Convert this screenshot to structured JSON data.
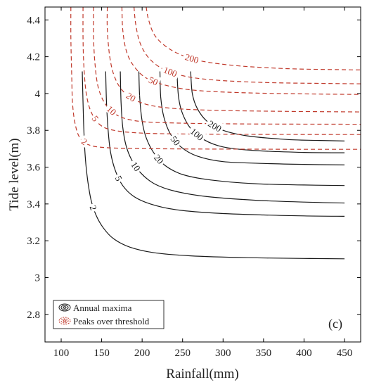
{
  "chart_data": {
    "type": "line",
    "title": "",
    "xlabel": "Rainfall(mm)",
    "ylabel": "Tide level(m)",
    "xlim": [
      80,
      470
    ],
    "ylim": [
      2.65,
      4.47
    ],
    "xticks": [
      100,
      150,
      200,
      250,
      300,
      350,
      400,
      450
    ],
    "yticks": [
      2.8,
      3,
      3.2,
      3.4,
      3.6,
      3.8,
      4,
      4.2,
      4.4
    ],
    "grid": false,
    "legend_position": "bottom-left",
    "panel_label": "(c)",
    "series": [
      {
        "name": "Annual maxima",
        "color": "#1a1a1a",
        "dash": "solid",
        "contours": [
          {
            "label": "2",
            "points": [
              [
                126,
                4.12
              ],
              [
                127,
                3.95
              ],
              [
                128,
                3.8
              ],
              [
                130,
                3.64
              ],
              [
                133,
                3.52
              ],
              [
                137,
                3.42
              ],
              [
                143,
                3.34
              ],
              [
                152,
                3.27
              ],
              [
                165,
                3.21
              ],
              [
                185,
                3.165
              ],
              [
                215,
                3.135
              ],
              [
                260,
                3.118
              ],
              [
                330,
                3.108
              ],
              [
                400,
                3.104
              ],
              [
                450,
                3.102
              ]
            ]
          },
          {
            "label": "5",
            "points": [
              [
                155,
                4.12
              ],
              [
                156,
                3.95
              ],
              [
                158,
                3.8
              ],
              [
                161,
                3.68
              ],
              [
                167,
                3.58
              ],
              [
                176,
                3.5
              ],
              [
                190,
                3.44
              ],
              [
                210,
                3.4
              ],
              [
                240,
                3.37
              ],
              [
                290,
                3.35
              ],
              [
                350,
                3.34
              ],
              [
                400,
                3.335
              ],
              [
                450,
                3.333
              ]
            ]
          },
          {
            "label": "10",
            "points": [
              [
                173,
                4.12
              ],
              [
                174,
                3.95
              ],
              [
                176,
                3.82
              ],
              [
                180,
                3.72
              ],
              [
                187,
                3.64
              ],
              [
                198,
                3.57
              ],
              [
                215,
                3.51
              ],
              [
                240,
                3.47
              ],
              [
                280,
                3.44
              ],
              [
                340,
                3.42
              ],
              [
                400,
                3.41
              ],
              [
                450,
                3.405
              ]
            ]
          },
          {
            "label": "20",
            "points": [
              [
                196,
                4.12
              ],
              [
                197,
                3.98
              ],
              [
                200,
                3.85
              ],
              [
                205,
                3.76
              ],
              [
                214,
                3.68
              ],
              [
                228,
                3.61
              ],
              [
                250,
                3.56
              ],
              [
                285,
                3.53
              ],
              [
                340,
                3.51
              ],
              [
                400,
                3.503
              ],
              [
                450,
                3.5
              ]
            ]
          },
          {
            "label": "50",
            "points": [
              [
                222,
                4.12
              ],
              [
                223,
                3.98
              ],
              [
                227,
                3.87
              ],
              [
                235,
                3.78
              ],
              [
                248,
                3.71
              ],
              [
                268,
                3.66
              ],
              [
                300,
                3.63
              ],
              [
                350,
                3.62
              ],
              [
                400,
                3.615
              ],
              [
                450,
                3.612
              ]
            ]
          },
          {
            "label": "100",
            "points": [
              [
                243,
                4.12
              ],
              [
                245,
                3.98
              ],
              [
                250,
                3.89
              ],
              [
                260,
                3.81
              ],
              [
                276,
                3.75
              ],
              [
                300,
                3.71
              ],
              [
                340,
                3.69
              ],
              [
                400,
                3.68
              ],
              [
                450,
                3.678
              ]
            ]
          },
          {
            "label": "200",
            "points": [
              [
                260,
                4.12
              ],
              [
                262,
                4.0
              ],
              [
                268,
                3.92
              ],
              [
                280,
                3.85
              ],
              [
                300,
                3.8
              ],
              [
                330,
                3.77
              ],
              [
                380,
                3.75
              ],
              [
                420,
                3.745
              ],
              [
                450,
                3.742
              ]
            ]
          }
        ]
      },
      {
        "name": "Peaks over threshold",
        "color": "#c0392b",
        "dash": "dashed",
        "contours": [
          {
            "label": "2",
            "points": [
              [
                112,
                4.47
              ],
              [
                112,
                4.3
              ],
              [
                113,
                4.1
              ],
              [
                114,
                3.95
              ],
              [
                117,
                3.84
              ],
              [
                123,
                3.76
              ],
              [
                135,
                3.72
              ],
              [
                160,
                3.705
              ],
              [
                220,
                3.7
              ],
              [
                300,
                3.698
              ],
              [
                400,
                3.697
              ],
              [
                470,
                3.697
              ]
            ]
          },
          {
            "label": "5",
            "points": [
              [
                127,
                4.47
              ],
              [
                127,
                4.3
              ],
              [
                128,
                4.15
              ],
              [
                131,
                4.0
              ],
              [
                137,
                3.9
              ],
              [
                148,
                3.83
              ],
              [
                165,
                3.8
              ],
              [
                200,
                3.785
              ],
              [
                260,
                3.78
              ],
              [
                350,
                3.778
              ],
              [
                470,
                3.777
              ]
            ]
          },
          {
            "label": "10",
            "points": [
              [
                140,
                4.47
              ],
              [
                140,
                4.3
              ],
              [
                142,
                4.15
              ],
              [
                146,
                4.03
              ],
              [
                155,
                3.94
              ],
              [
                170,
                3.88
              ],
              [
                195,
                3.85
              ],
              [
                240,
                3.84
              ],
              [
                320,
                3.835
              ],
              [
                470,
                3.833
              ]
            ]
          },
          {
            "label": "20",
            "points": [
              [
                157,
                4.47
              ],
              [
                157,
                4.35
              ],
              [
                160,
                4.2
              ],
              [
                166,
                4.09
              ],
              [
                177,
                4.01
              ],
              [
                196,
                3.955
              ],
              [
                225,
                3.925
              ],
              [
                280,
                3.91
              ],
              [
                380,
                3.903
              ],
              [
                470,
                3.9
              ]
            ]
          },
          {
            "label": "50",
            "points": [
              [
                175,
                4.47
              ],
              [
                176,
                4.35
              ],
              [
                180,
                4.24
              ],
              [
                188,
                4.16
              ],
              [
                203,
                4.09
              ],
              [
                225,
                4.05
              ],
              [
                260,
                4.02
              ],
              [
                320,
                4.005
              ],
              [
                400,
                3.998
              ],
              [
                470,
                3.995
              ]
            ]
          },
          {
            "label": "100",
            "points": [
              [
                190,
                4.47
              ],
              [
                192,
                4.38
              ],
              [
                197,
                4.28
              ],
              [
                207,
                4.2
              ],
              [
                223,
                4.14
              ],
              [
                247,
                4.1
              ],
              [
                285,
                4.075
              ],
              [
                350,
                4.06
              ],
              [
                420,
                4.055
              ],
              [
                470,
                4.053
              ]
            ]
          },
          {
            "label": "200",
            "points": [
              [
                205,
                4.47
              ],
              [
                208,
                4.4
              ],
              [
                215,
                4.32
              ],
              [
                228,
                4.26
              ],
              [
                248,
                4.21
              ],
              [
                275,
                4.175
              ],
              [
                320,
                4.15
              ],
              [
                380,
                4.135
              ],
              [
                440,
                4.13
              ],
              [
                470,
                4.128
              ]
            ]
          }
        ]
      }
    ]
  }
}
